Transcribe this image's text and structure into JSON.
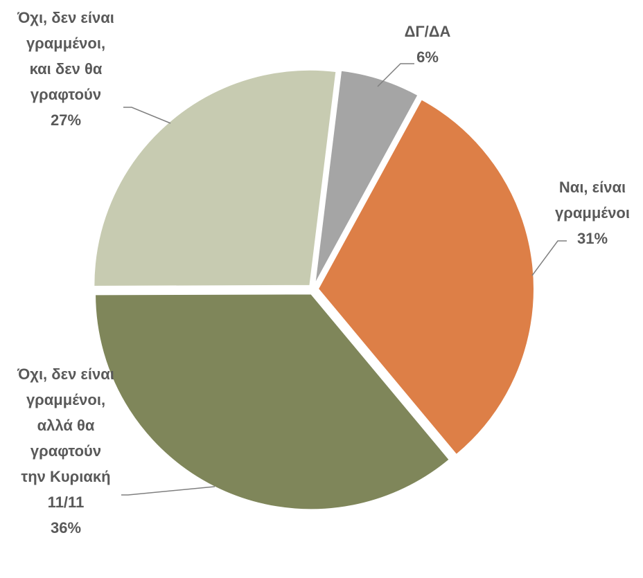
{
  "chart_data": {
    "type": "pie",
    "categories": [
      "ΔΓ/ΔΑ",
      "Ναι, είναι γραμμένοι",
      "Όχι, δεν είναι γραμμένοι, αλλά θα γραφτούν την Κυριακή 11/11",
      "Όχι, δεν είναι γραμμένοι, και δεν θα γραφτούν"
    ],
    "values": [
      6,
      31,
      36,
      27
    ],
    "value_labels": [
      "6%",
      "31%",
      "36%",
      "27%"
    ],
    "colors": [
      "#a5a5a5",
      "#dd7f47",
      "#7f865a",
      "#c7cbb1"
    ]
  }
}
